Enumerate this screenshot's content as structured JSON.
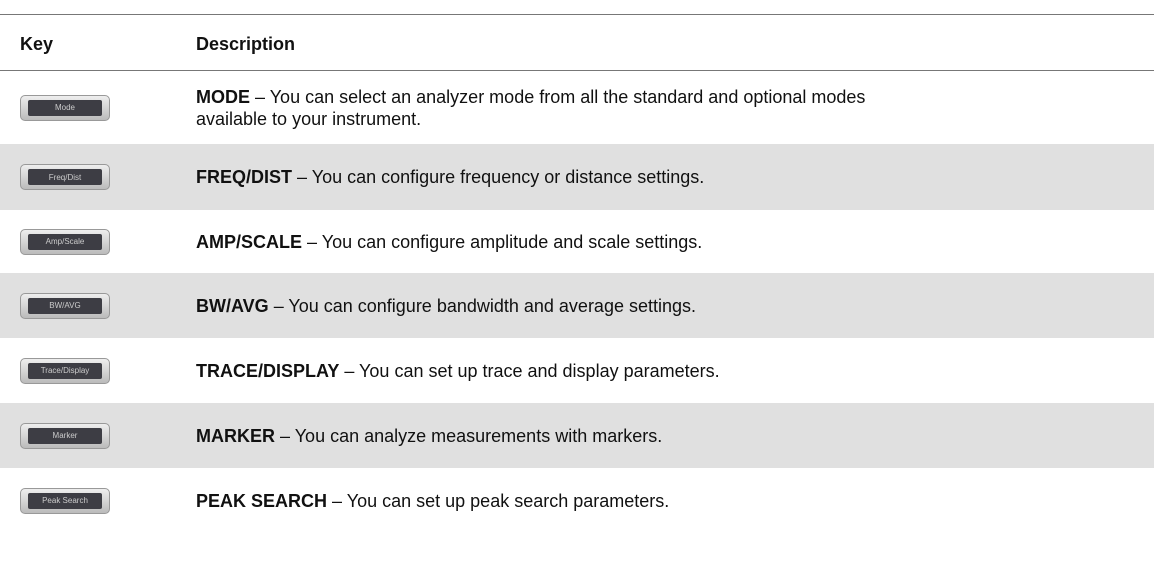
{
  "table": {
    "headers": [
      "Key",
      "Description"
    ],
    "rows": [
      {
        "key": "Mode",
        "name": "MODE",
        "text": "– You can select an analyzer mode from all the standard and optional modes available to your instrument."
      },
      {
        "key": "Freq/Dist",
        "name": "FREQ/DIST",
        "text": "– You can configure frequency or distance settings."
      },
      {
        "key": "Amp/Scale",
        "name": "AMP/SCALE",
        "text": "– You can configure amplitude and scale settings."
      },
      {
        "key": "BW/AVG",
        "name": "BW/AVG",
        "text": "– You can configure bandwidth and average settings."
      },
      {
        "key": "Trace/Display",
        "name": "TRACE/DISPLAY",
        "text": "– You can set up trace and display parameters."
      },
      {
        "key": "Marker",
        "name": "MARKER",
        "text": "– You can analyze measurements with markers."
      },
      {
        "key": "Peak Search",
        "name": "PEAK SEARCH",
        "text": "– You can set up peak search parameters."
      }
    ]
  }
}
